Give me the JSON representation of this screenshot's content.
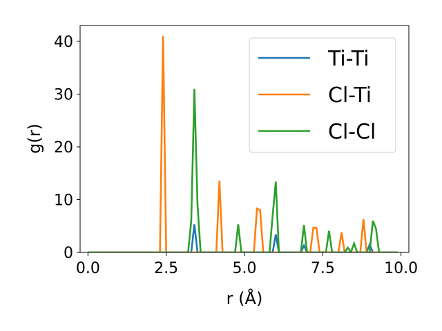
{
  "chart_data": {
    "type": "line",
    "xlabel": "r (Å)",
    "ylabel": "g(r)",
    "xlim": [
      -0.25,
      10.25
    ],
    "ylim": [
      0,
      43
    ],
    "xticks": [
      0.0,
      2.5,
      5.0,
      7.5,
      10.0
    ],
    "xtick_labels": [
      "0.0",
      "2.5",
      "5.0",
      "7.5",
      "10.0"
    ],
    "yticks": [
      0,
      10,
      20,
      30,
      40
    ],
    "ytick_labels": [
      "0",
      "10",
      "20",
      "30",
      "40"
    ],
    "grid": false,
    "legend_position": "top-right",
    "series": [
      {
        "name": "Ti-Ti",
        "color": "#1f77b4",
        "x": [
          0,
          3.3,
          3.4,
          3.5,
          5.9,
          6.0,
          6.1,
          6.8,
          6.9,
          7.0,
          8.9,
          9.0,
          9.1,
          9.9
        ],
        "y": [
          0,
          0,
          5.3,
          0,
          0,
          3.4,
          0,
          0,
          1.3,
          0,
          0,
          1.5,
          0,
          0
        ]
      },
      {
        "name": "Cl-Ti",
        "color": "#ff7f0e",
        "x": [
          0,
          2.3,
          2.4,
          2.5,
          4.1,
          4.2,
          4.3,
          5.3,
          5.4,
          5.5,
          5.6,
          7.1,
          7.2,
          7.3,
          7.4,
          8.0,
          8.1,
          8.2,
          8.7,
          8.8,
          8.9,
          9.9
        ],
        "y": [
          0,
          0,
          41,
          0,
          0,
          13.6,
          0,
          0,
          8.3,
          8.0,
          0,
          0,
          4.7,
          4.6,
          0,
          0,
          3.8,
          0,
          0,
          6.3,
          0,
          0
        ]
      },
      {
        "name": "Cl-Cl",
        "color": "#2ca02c",
        "x": [
          0,
          3.2,
          3.3,
          3.4,
          3.5,
          3.6,
          4.7,
          4.8,
          4.9,
          5.8,
          5.9,
          6.0,
          6.1,
          6.8,
          6.9,
          7.0,
          7.6,
          7.7,
          7.8,
          8.2,
          8.3,
          8.4,
          8.5,
          8.6,
          9.0,
          9.1,
          9.2,
          9.3,
          9.9
        ],
        "y": [
          0,
          0,
          6,
          31,
          9,
          0,
          0,
          5.3,
          0,
          0,
          7,
          13.4,
          0,
          0,
          5.2,
          0,
          0,
          4.1,
          0,
          0,
          0.9,
          0,
          1.7,
          0,
          0,
          6,
          4.5,
          0,
          0
        ]
      }
    ]
  }
}
